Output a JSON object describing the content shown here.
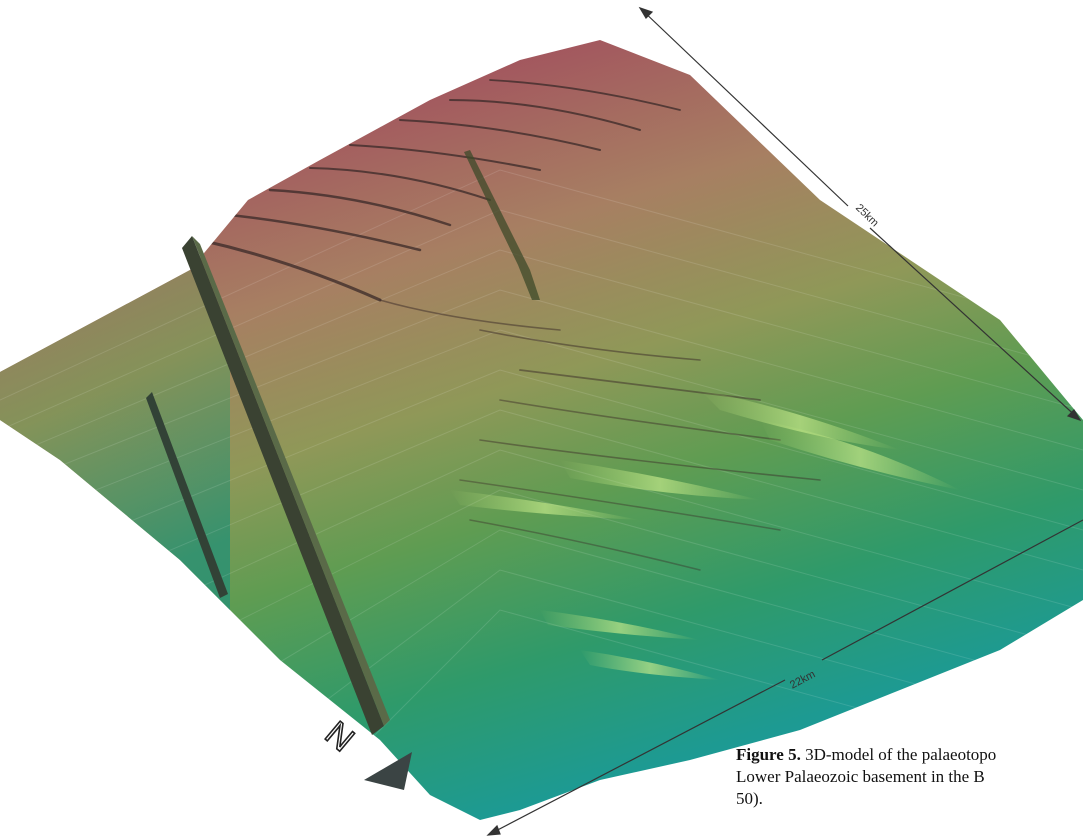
{
  "figure": {
    "scale_labels": {
      "right_edge": "25km",
      "bottom_edge": "22km"
    },
    "north_arrow": {
      "label": "N",
      "icon": "north-arrow-icon"
    },
    "surface_colors": {
      "high": "#a2525e",
      "upper_mid": "#9a8356",
      "mid": "#6f9a50",
      "lower_mid": "#2f9a6a",
      "low": "#1a9aa8"
    }
  },
  "caption": {
    "label": "Figure 5.",
    "line1": " 3D-model of the palaeotopo",
    "line2": "Lower Palaeozoic basement in the B",
    "line3": "50)."
  }
}
